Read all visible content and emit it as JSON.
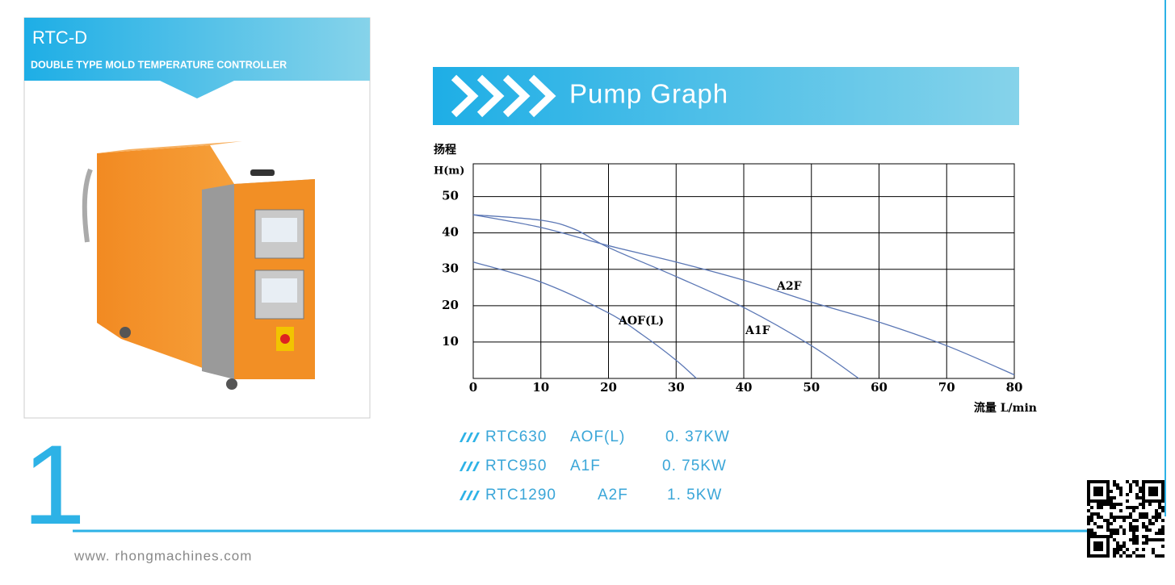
{
  "header": {
    "model": "RTC-D",
    "subtitle": "DOUBLE TYPE MOLD TEMPERATURE CONTROLLER"
  },
  "section_title": "Pump Graph",
  "chart_data": {
    "type": "line",
    "ylabel": "扬程",
    "yunit": "H(m)",
    "xlabel": "流量 L/min",
    "xlim": [
      0,
      80
    ],
    "xticks": [
      0,
      10,
      20,
      30,
      40,
      50,
      60,
      70,
      80
    ],
    "ylim": [
      0,
      59
    ],
    "yticks": [
      10,
      20,
      30,
      40,
      50
    ],
    "grid": true,
    "series": [
      {
        "name": "AOF(L)",
        "color": "#5b77b5",
        "x": [
          0,
          10,
          20,
          25,
          30,
          33
        ],
        "values": [
          32,
          26.5,
          18,
          12,
          5,
          0
        ]
      },
      {
        "name": "A1F",
        "color": "#5b77b5",
        "x": [
          0,
          10,
          15,
          20,
          30,
          40,
          50,
          57
        ],
        "values": [
          45,
          43.5,
          41,
          36,
          28,
          19.5,
          9,
          0
        ]
      },
      {
        "name": "A2F",
        "color": "#5b77b5",
        "x": [
          0,
          10,
          20,
          30,
          40,
          50,
          60,
          70,
          80
        ],
        "values": [
          45,
          41.5,
          36.5,
          32,
          27,
          21,
          15.5,
          9,
          1
        ]
      }
    ]
  },
  "models": [
    {
      "model": "RTC630",
      "pump": "AOF(L)",
      "power": "0. 37KW"
    },
    {
      "model": "RTC950",
      "pump": "A1F",
      "power": "0. 75KW"
    },
    {
      "model": "RTC1290",
      "pump": "A2F",
      "power": "1. 5KW"
    }
  ],
  "page_number": "1",
  "website": "www. rhongmachines.com"
}
